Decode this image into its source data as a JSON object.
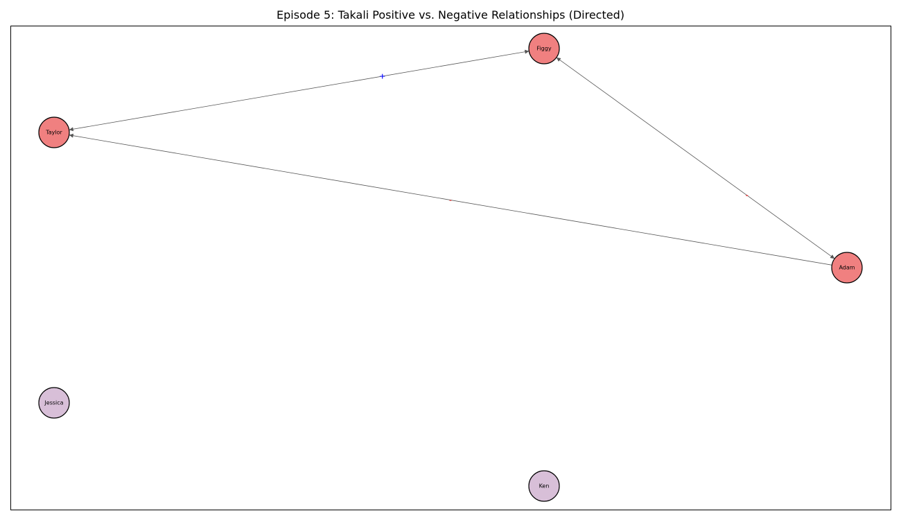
{
  "title": "Episode 5: Takali Positive vs. Negative Relationships (Directed)",
  "colors": {
    "in_relationship_node": "#f08080",
    "isolated_node": "#d8bfd8",
    "node_border": "#000000",
    "edge": "#555555",
    "positive_label": "#0000ff",
    "negative_label": "#ff0000",
    "frame": "#000000"
  },
  "nodes": [
    {
      "id": "Figgy",
      "label": "Figgy",
      "group": "connected"
    },
    {
      "id": "Taylor",
      "label": "Taylor",
      "group": "connected"
    },
    {
      "id": "Adam",
      "label": "Adam",
      "group": "connected"
    },
    {
      "id": "Jessica",
      "label": "Jessica",
      "group": "isolated"
    },
    {
      "id": "Ken",
      "label": "Ken",
      "group": "isolated"
    }
  ],
  "edges": [
    {
      "source": "Taylor",
      "target": "Figgy",
      "sign": "positive",
      "label": "+"
    },
    {
      "source": "Figgy",
      "target": "Taylor",
      "sign": "positive",
      "label": "+"
    },
    {
      "source": "Adam",
      "target": "Figgy",
      "sign": "negative",
      "label": "-"
    },
    {
      "source": "Figgy",
      "target": "Adam",
      "sign": "negative",
      "label": "-"
    },
    {
      "source": "Adam",
      "target": "Taylor",
      "sign": "negative",
      "label": "-"
    }
  ]
}
